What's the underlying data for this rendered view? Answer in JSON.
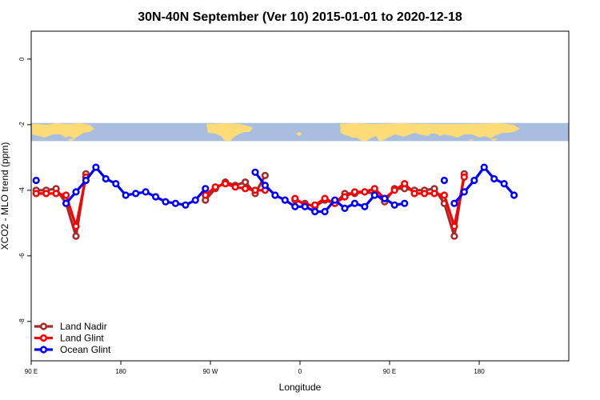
{
  "chart_data": {
    "type": "line",
    "title": "30N-40N September (Ver 10)   2015-01-01 to 2020-12-18",
    "xlabel": "Longitude",
    "ylabel": "XCO2 - MLO trend (ppm)",
    "xlim": [
      -90,
      180
    ],
    "ylim": [
      -9.2,
      0.85
    ],
    "xticks": [
      {
        "value": -90,
        "label": "90 E"
      },
      {
        "value": -45,
        "label": "180"
      },
      {
        "value": 0,
        "label": "90 W"
      },
      {
        "value": 45,
        "label": "0"
      },
      {
        "value": 90,
        "label": "90 E"
      },
      {
        "value": 135,
        "label": "180"
      }
    ],
    "yticks": [
      {
        "value": 0,
        "label": "0"
      },
      {
        "value": -2,
        "label": "-2"
      },
      {
        "value": -4,
        "label": "-4"
      },
      {
        "value": -6,
        "label": "-6"
      },
      {
        "value": -8,
        "label": "-8"
      }
    ],
    "map_band": {
      "y_top": -1.95,
      "y_bottom": -2.5,
      "ocean_color": "#a9bede",
      "land_color": "#fddc78"
    },
    "legend_position": "bottom-left",
    "series": [
      {
        "name": "Land Nadir",
        "color": "#a52a2a",
        "segments": [
          [
            [
              -87.5,
              -4.0
            ],
            [
              -82.5,
              -4.0
            ],
            [
              -77.5,
              -3.95
            ],
            [
              -72.5,
              -4.4
            ],
            [
              -67.5,
              -5.4
            ],
            [
              -62.5,
              -3.5
            ]
          ],
          [
            [
              -2.5,
              -4.3
            ],
            [
              2.5,
              -3.95
            ],
            [
              7.5,
              -3.75
            ],
            [
              12.5,
              -3.85
            ],
            [
              17.5,
              -3.75
            ],
            [
              22.5,
              -4.1
            ],
            [
              27.5,
              -3.55
            ]
          ],
          [
            [
              42.5,
              -4.3
            ],
            [
              47.5,
              -4.4
            ],
            [
              52.5,
              -4.5
            ],
            [
              57.5,
              -4.3
            ],
            [
              62.5,
              -4.4
            ],
            [
              67.5,
              -4.1
            ],
            [
              72.5,
              -4.1
            ],
            [
              77.5,
              -4.05
            ],
            [
              82.5,
              -4.1
            ],
            [
              87.5,
              -4.35
            ],
            [
              92.5,
              -3.95
            ],
            [
              97.5,
              -3.95
            ],
            [
              102.5,
              -4.0
            ],
            [
              107.5,
              -4.0
            ],
            [
              112.5,
              -3.95
            ],
            [
              117.5,
              -4.4
            ],
            [
              122.5,
              -5.4
            ],
            [
              127.5,
              -3.5
            ]
          ]
        ]
      },
      {
        "name": "Land Glint",
        "color": "#ff0000",
        "segments": [
          [
            [
              -87.5,
              -4.1
            ],
            [
              -82.5,
              -4.1
            ],
            [
              -77.5,
              -4.1
            ],
            [
              -72.5,
              -4.15
            ],
            [
              -67.5,
              -5.1
            ],
            [
              -62.5,
              -3.6
            ]
          ],
          [
            [
              -2.5,
              -4.15
            ],
            [
              2.5,
              -3.9
            ],
            [
              7.5,
              -3.8
            ],
            [
              12.5,
              -3.9
            ],
            [
              17.5,
              -3.95
            ],
            [
              22.5,
              -4.0
            ],
            [
              27.5,
              -4.0
            ]
          ],
          [
            [
              42.5,
              -4.25
            ],
            [
              47.5,
              -4.45
            ],
            [
              52.5,
              -4.45
            ],
            [
              57.5,
              -4.25
            ],
            [
              62.5,
              -4.4
            ],
            [
              67.5,
              -4.2
            ],
            [
              72.5,
              -4.05
            ],
            [
              77.5,
              -4.05
            ],
            [
              82.5,
              -3.95
            ],
            [
              87.5,
              -4.25
            ],
            [
              92.5,
              -4.0
            ],
            [
              97.5,
              -3.8
            ],
            [
              102.5,
              -4.1
            ],
            [
              107.5,
              -4.1
            ],
            [
              112.5,
              -4.1
            ],
            [
              117.5,
              -4.15
            ],
            [
              122.5,
              -5.1
            ],
            [
              127.5,
              -3.6
            ]
          ]
        ]
      },
      {
        "name": "Ocean Glint",
        "color": "#0000ff",
        "segments": [
          [
            [
              -87.5,
              -3.7
            ]
          ],
          [
            [
              -72.5,
              -4.4
            ],
            [
              -67.5,
              -4.05
            ],
            [
              -62.5,
              -3.7
            ],
            [
              -57.5,
              -3.3
            ],
            [
              -52.5,
              -3.65
            ],
            [
              -47.5,
              -3.8
            ],
            [
              -42.5,
              -4.15
            ],
            [
              -37.5,
              -4.1
            ],
            [
              -32.5,
              -4.05
            ],
            [
              -27.5,
              -4.2
            ],
            [
              -22.5,
              -4.35
            ],
            [
              -17.5,
              -4.4
            ],
            [
              -12.5,
              -4.45
            ],
            [
              -7.5,
              -4.3
            ],
            [
              -2.5,
              -3.95
            ]
          ],
          [
            [
              22.5,
              -3.45
            ],
            [
              27.5,
              -3.85
            ],
            [
              32.5,
              -4.15
            ],
            [
              37.5,
              -4.3
            ],
            [
              42.5,
              -4.5
            ],
            [
              47.5,
              -4.5
            ],
            [
              52.5,
              -4.65
            ],
            [
              57.5,
              -4.65
            ],
            [
              62.5,
              -4.3
            ],
            [
              67.5,
              -4.55
            ],
            [
              72.5,
              -4.4
            ],
            [
              77.5,
              -4.5
            ],
            [
              82.5,
              -4.15
            ],
            [
              87.5,
              -4.25
            ],
            [
              92.5,
              -4.45
            ],
            [
              97.5,
              -4.4
            ]
          ],
          [
            [
              117.5,
              -3.7
            ]
          ],
          [
            [
              122.5,
              -4.4
            ],
            [
              127.5,
              -4.05
            ],
            [
              132.5,
              -3.7
            ],
            [
              137.5,
              -3.3
            ],
            [
              142.5,
              -3.65
            ],
            [
              147.5,
              -3.8
            ],
            [
              152.5,
              -4.15
            ]
          ]
        ]
      }
    ]
  }
}
